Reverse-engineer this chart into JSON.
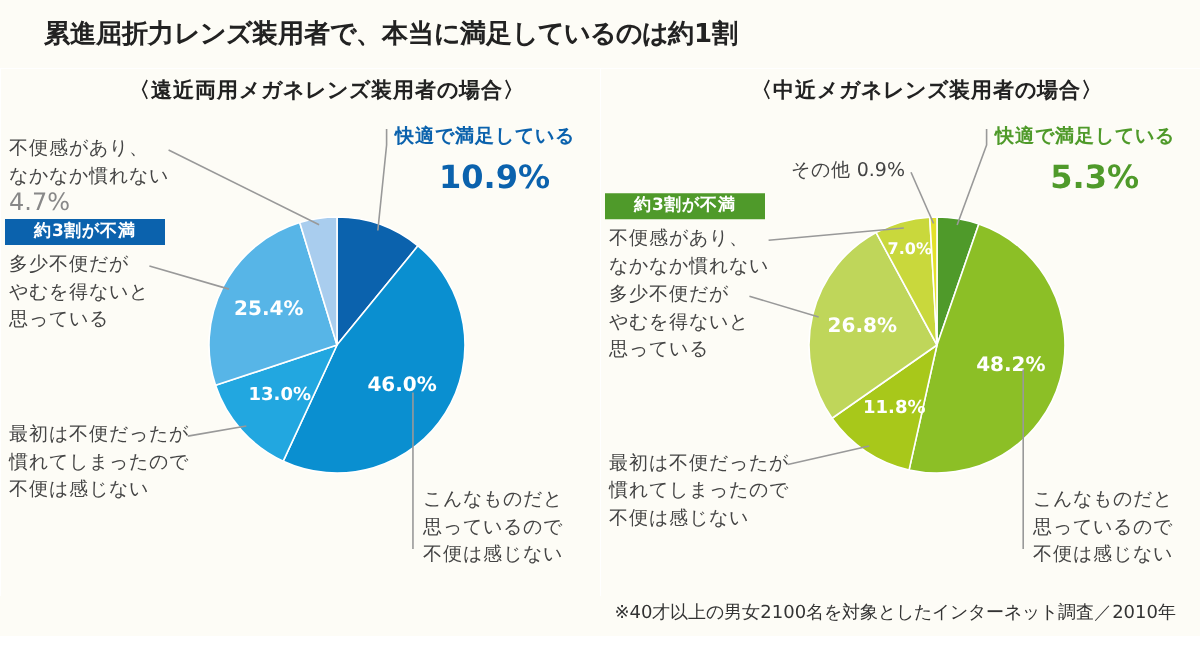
{
  "chart_data": [
    {
      "type": "other",
      "title": "累進屈折力レンズ装用者で、本当に満足しているのは約1割",
      "annotations": [
        "※40才以上の男女2100名を対象としたインターネット調査／2010年"
      ]
    },
    {
      "type": "pie",
      "title": "〈遠近両用メガネレンズ装用者の場合〉",
      "categories": [
        "快適で満足している",
        "こんなものだと思っているので不便は感じない",
        "最初は不便だったが慣れてしまったので不便は感じない",
        "多少不便だがやむを得ないと思っている",
        "不便感があり、なかなか慣れない"
      ],
      "values": [
        10.9,
        46.0,
        13.0,
        25.4,
        4.7
      ],
      "value_labels": [
        "10.9%",
        "46.0%",
        "13.0%",
        "25.4%",
        "4.7%"
      ],
      "colors": [
        "#0b62ad",
        "#0a8fd0",
        "#22a7e0",
        "#57b5e7",
        "#a9cdee"
      ],
      "annotations": [
        "約3割が不満"
      ]
    },
    {
      "type": "pie",
      "title": "〈中近メガネレンズ装用者の場合〉",
      "categories": [
        "快適で満足している",
        "こんなものだと思っているので不便は感じない",
        "最初は不便だったが慣れてしまったので不便は感じない",
        "多少不便だがやむを得ないと思っている",
        "不便感があり、なかなか慣れない",
        "その他"
      ],
      "values": [
        5.3,
        48.2,
        11.8,
        26.8,
        7.0,
        0.9
      ],
      "value_labels": [
        "5.3%",
        "48.2%",
        "11.8%",
        "26.8%",
        "7.0%",
        "0.9%"
      ],
      "colors": [
        "#4f9a2a",
        "#8cbf26",
        "#a8c81a",
        "#bfd65a",
        "#c9d83c",
        "#e3e12a"
      ],
      "annotations": [
        "約3割が不満"
      ]
    }
  ]
}
